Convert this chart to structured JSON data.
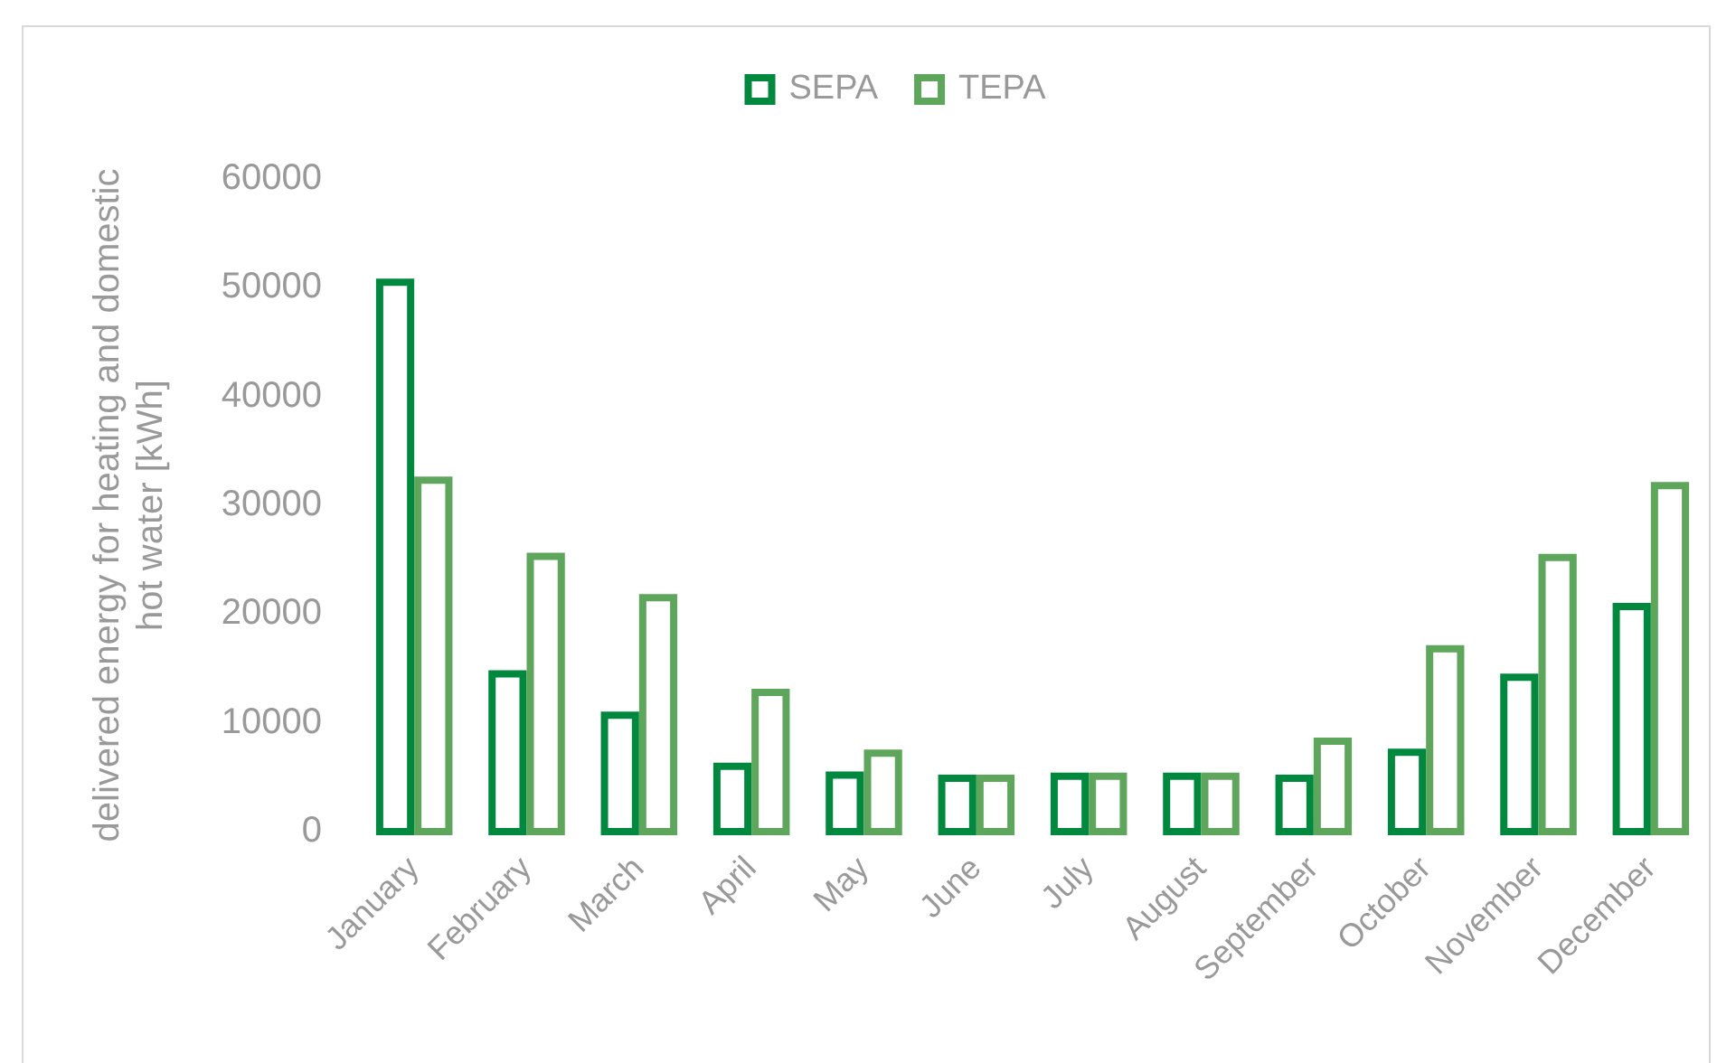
{
  "chart_data": {
    "type": "bar",
    "ylabel": "delivered energy for heating and domestic hot water [kWh]",
    "categories": [
      "January",
      "February",
      "March",
      "April",
      "May",
      "June",
      "July",
      "August",
      "September",
      "October",
      "November",
      "December"
    ],
    "series": [
      {
        "name": "SEPA",
        "color": "#00893e",
        "values": [
          50500,
          14500,
          10700,
          6000,
          5200,
          4900,
          5100,
          5100,
          4900,
          7300,
          14200,
          20700
        ]
      },
      {
        "name": "TEPA",
        "color": "#5ea65c",
        "values": [
          32300,
          25300,
          21500,
          12800,
          7200,
          4900,
          5100,
          5100,
          8300,
          16800,
          25200,
          31800
        ]
      }
    ],
    "ylim": [
      0,
      60000
    ],
    "yticks": [
      0,
      10000,
      20000,
      30000,
      40000,
      50000,
      60000
    ],
    "grid": false,
    "legend": "top"
  }
}
